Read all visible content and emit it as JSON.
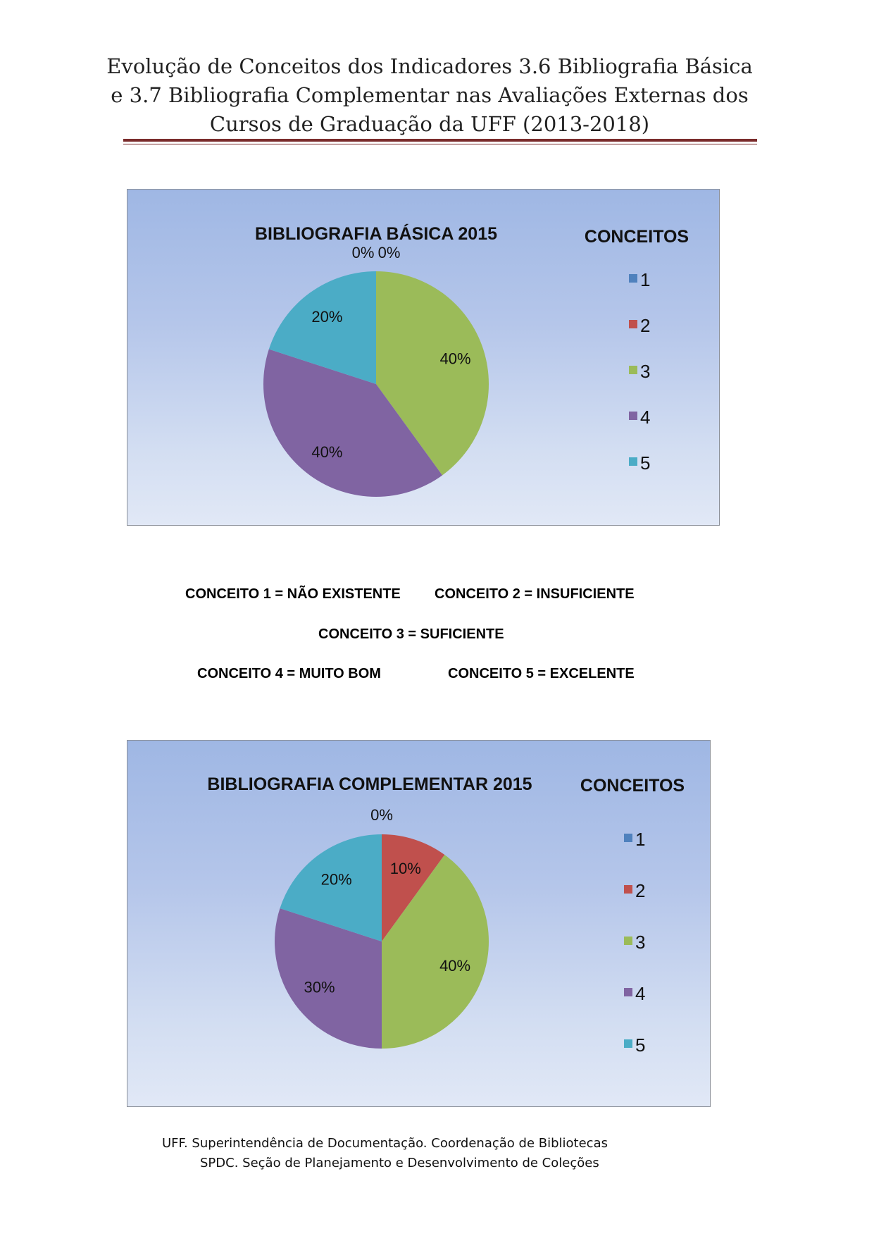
{
  "document": {
    "title_lines": [
      "Evolução de Conceitos dos Indicadores 3.6 Bibliografia Básica",
      "e 3.7 Bibliografia Complementar nas Avaliações Externas dos",
      "Cursos de Graduação da UFF (2013-2018)"
    ]
  },
  "legend_title": "CONCEITOS",
  "concept_colors": [
    "#4f81bd",
    "#c0504d",
    "#9bbb59",
    "#8064a2",
    "#4bacc6"
  ],
  "chart_data": [
    {
      "type": "pie",
      "title": "BIBLIOGRAFIA BÁSICA 2015",
      "legend_title": "CONCEITOS",
      "legend_position": "right",
      "categories": [
        "1",
        "2",
        "3",
        "4",
        "5"
      ],
      "values": [
        0,
        0,
        40,
        40,
        20
      ],
      "value_labels": [
        "0%",
        "0%",
        "40%",
        "40%",
        "20%"
      ]
    },
    {
      "type": "pie",
      "title": "BIBLIOGRAFIA COMPLEMENTAR 2015",
      "legend_title": "CONCEITOS",
      "legend_position": "right",
      "categories": [
        "1",
        "2",
        "3",
        "4",
        "5"
      ],
      "values": [
        0,
        10,
        40,
        30,
        20
      ],
      "value_labels": [
        "0%",
        "10%",
        "40%",
        "30%",
        "20%"
      ]
    }
  ],
  "concepts": {
    "c1": "CONCEITO 1 = NÃO EXISTENTE",
    "c2": "CONCEITO 2 = INSUFICIENTE",
    "c3": "CONCEITO 3 = SUFICIENTE",
    "c4": "CONCEITO 4 = MUITO BOM",
    "c5": "CONCEITO 5 = EXCELENTE"
  },
  "footer": {
    "line1": "UFF. Superintendência de Documentação. Coordenação de Bibliotecas",
    "line2": "SPDC. Seção de Planejamento e Desenvolvimento de Coleções"
  }
}
